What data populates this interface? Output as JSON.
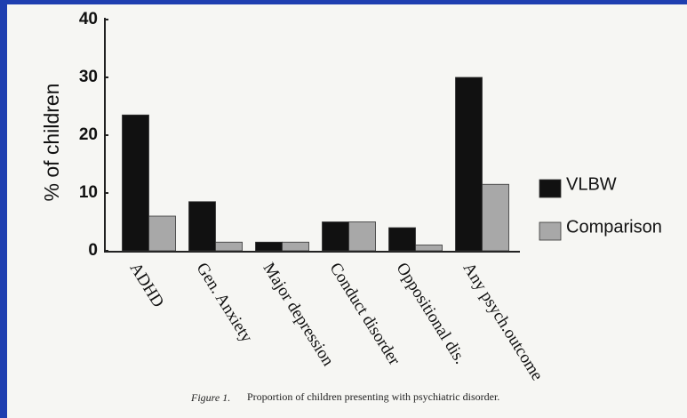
{
  "chart_data": {
    "type": "bar",
    "y_axis_label": "% of children",
    "categories": [
      "ADHD",
      "Gen. Anxiety",
      "Major depression",
      "Conduct disorder",
      "Oppositional dis.",
      "Any psych.outcome"
    ],
    "series": [
      {
        "name": "VLBW",
        "color": "#111111",
        "values": [
          23.5,
          8.5,
          1.5,
          5,
          4,
          30
        ]
      },
      {
        "name": "Comparison",
        "color": "#a8a8a8",
        "values": [
          6,
          1.5,
          1.5,
          5,
          1,
          11.5
        ]
      }
    ],
    "ylim": [
      0,
      40
    ],
    "yticks": [
      0,
      10,
      20,
      30,
      40
    ],
    "caption_label": "Figure 1.",
    "caption": "Proportion of children presenting with psychiatric disorder."
  }
}
